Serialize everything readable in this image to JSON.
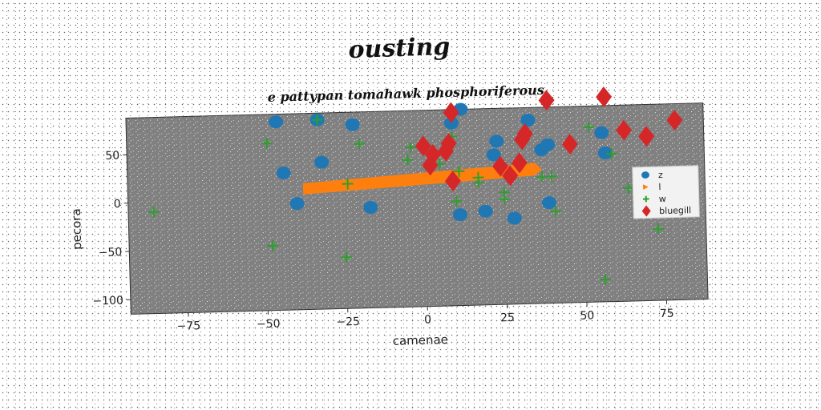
{
  "chart_data": {
    "type": "scatter",
    "title": "ousting",
    "subtitle": "e pattypan tomahawk phosphoriferous",
    "xlabel": "camenae",
    "ylabel": "pecora",
    "xlim": [
      -93,
      88
    ],
    "ylim": [
      -115,
      88
    ],
    "xticks": [
      -75,
      -50,
      -25,
      0,
      25,
      50,
      75
    ],
    "yticks": [
      50,
      0,
      -50,
      -100
    ],
    "grid": false,
    "legend_position": "right",
    "background": "#808080",
    "series": [
      {
        "name": "z",
        "marker": "circle",
        "color": "#1f77b4",
        "x": [
          -46,
          -33,
          -22,
          -44,
          -32,
          -40,
          -17,
          9,
          12,
          23,
          22,
          33,
          37,
          39,
          19,
          28,
          11,
          39,
          56,
          57
        ],
        "y": [
          80,
          81,
          75,
          27,
          37,
          -5,
          -11,
          74,
          88,
          54,
          40,
          75,
          44,
          49,
          -18,
          -26,
          -21,
          -11,
          60,
          39
        ]
      },
      {
        "name": "l",
        "marker": "band",
        "color": "#ff7f0e",
        "x": [
          -38,
          35
        ],
        "y": [
          10,
          24
        ]
      },
      {
        "name": "w",
        "marker": "plus",
        "color": "#2ca02c",
        "x": [
          -85,
          -33,
          -49,
          -48,
          -48,
          -25,
          -24,
          -20,
          -5,
          -4,
          5,
          9,
          11,
          10,
          17,
          17,
          25,
          25,
          37,
          40,
          41,
          52,
          59,
          64,
          73,
          56
        ],
        "y": [
          -10,
          81,
          58,
          -48,
          -48,
          -62,
          14,
          55,
          37,
          50,
          32,
          60,
          24,
          -7,
          17,
          12,
          1,
          -6,
          16,
          16,
          -20,
          66,
          38,
          2,
          -41,
          -92
        ]
      },
      {
        "name": "bluegill",
        "marker": "diamond",
        "color": "#d62728",
        "x": [
          9,
          0,
          3,
          7,
          2,
          8,
          9,
          24,
          27,
          31,
          32,
          30,
          39,
          46,
          57,
          63,
          70,
          79
        ],
        "y": [
          85,
          51,
          42,
          45,
          31,
          53,
          14,
          28,
          18,
          55,
          61,
          31,
          95,
          49,
          97,
          62,
          55,
          71
        ]
      }
    ]
  }
}
